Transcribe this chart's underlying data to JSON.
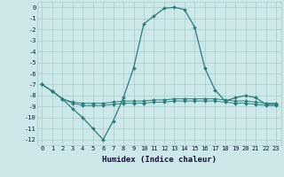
{
  "xlabel": "Humidex (Indice chaleur)",
  "x_values": [
    0,
    1,
    2,
    3,
    4,
    5,
    6,
    7,
    8,
    9,
    10,
    11,
    12,
    13,
    14,
    15,
    16,
    17,
    18,
    19,
    20,
    21,
    22,
    23
  ],
  "line1_y": [
    -7.0,
    -7.6,
    -8.3,
    -9.2,
    -10.0,
    -11.0,
    -12.0,
    -10.3,
    -8.2,
    -5.5,
    -1.5,
    -0.8,
    -0.1,
    0.0,
    -0.2,
    -1.8,
    -5.5,
    -7.5,
    -8.5,
    -8.2,
    -8.0,
    -8.2,
    -8.8,
    -8.8
  ],
  "line2_y": [
    -7.0,
    -7.6,
    -8.3,
    -8.6,
    -8.7,
    -8.7,
    -8.7,
    -8.6,
    -8.5,
    -8.5,
    -8.5,
    -8.4,
    -8.4,
    -8.3,
    -8.3,
    -8.3,
    -8.3,
    -8.3,
    -8.4,
    -8.5,
    -8.5,
    -8.6,
    -8.7,
    -8.7
  ],
  "line3_y": [
    -7.0,
    -7.6,
    -8.3,
    -8.7,
    -8.9,
    -8.9,
    -8.9,
    -8.8,
    -8.7,
    -8.7,
    -8.7,
    -8.6,
    -8.6,
    -8.5,
    -8.5,
    -8.5,
    -8.5,
    -8.5,
    -8.6,
    -8.7,
    -8.7,
    -8.8,
    -8.9,
    -8.9
  ],
  "line_color": "#2a7d7d",
  "bg_color": "#cce8e8",
  "grid_color": "#aacccc",
  "ylim": [
    -12.5,
    0.5
  ],
  "xlim": [
    -0.5,
    23.5
  ],
  "yticks": [
    0,
    -1,
    -2,
    -3,
    -4,
    -5,
    -6,
    -7,
    -8,
    -9,
    -10,
    -11,
    -12
  ],
  "xticks": [
    0,
    1,
    2,
    3,
    4,
    5,
    6,
    7,
    8,
    9,
    10,
    11,
    12,
    13,
    14,
    15,
    16,
    17,
    18,
    19,
    20,
    21,
    22,
    23
  ],
  "marker": "D",
  "markersize": 2.0,
  "tick_fontsize": 5.0,
  "xlabel_fontsize": 6.5
}
